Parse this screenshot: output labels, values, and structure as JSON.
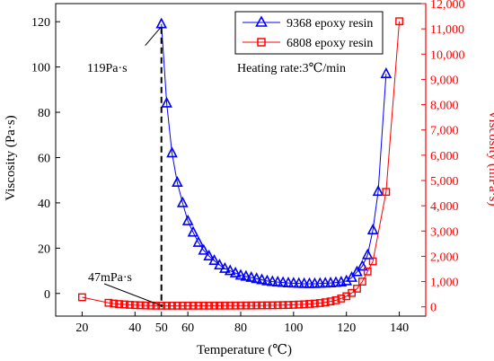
{
  "chart_data": {
    "type": "line",
    "xlabel": "Temperature (℃)",
    "ylabel_left": "Viscosity (Pa·s)",
    "ylabel_right": "Viscosity (mPa·s)",
    "xlim": [
      10,
      150
    ],
    "ylim_left": [
      -10,
      128
    ],
    "ylim_right": [
      -366,
      12000
    ],
    "x_ticks": [
      20,
      40,
      50,
      60,
      80,
      100,
      120,
      140
    ],
    "x_ticklabels": [
      "20",
      "40",
      "50",
      "60",
      "80",
      "100",
      "120",
      "140"
    ],
    "y_left_ticks": [
      0,
      20,
      40,
      60,
      80,
      100,
      120
    ],
    "y_left_ticklabels": [
      "0",
      "20",
      "40",
      "60",
      "80",
      "100",
      "120"
    ],
    "y_right_ticks": [
      0,
      1000,
      2000,
      3000,
      4000,
      5000,
      6000,
      7000,
      8000,
      9000,
      10000,
      11000,
      12000
    ],
    "y_right_ticklabels": [
      "0",
      "1,000",
      "2,000",
      "3,000",
      "4,000",
      "5,000",
      "6,000",
      "7,000",
      "8,000",
      "9,000",
      "10,000",
      "11,000",
      "12,000"
    ],
    "grid": false,
    "legend_position": "top-right",
    "annotations": {
      "peak_label": "119Pa·s",
      "low_label": "47mPa·s",
      "heating_rate": "Heating rate:3℃/min"
    },
    "series": [
      {
        "name": "9368 epoxy resin",
        "axis": "left",
        "color": "#0000ff",
        "marker": "triangle",
        "x": [
          50,
          52,
          54,
          56,
          58,
          60,
          62,
          64,
          66,
          68,
          70,
          72,
          74,
          76,
          78,
          80,
          82,
          84,
          86,
          88,
          90,
          92,
          94,
          96,
          98,
          100,
          102,
          104,
          106,
          108,
          110,
          112,
          114,
          116,
          118,
          120,
          122,
          124,
          126,
          128,
          130,
          132,
          135
        ],
        "y": [
          119,
          84,
          62,
          49,
          40,
          32,
          27,
          22.5,
          19,
          16.5,
          14.5,
          12.5,
          11,
          10,
          9,
          8,
          7.5,
          7,
          6.5,
          6,
          5.5,
          5.2,
          5,
          4.8,
          4.6,
          4.5,
          4.4,
          4.3,
          4.3,
          4.3,
          4.4,
          4.5,
          4.6,
          4.8,
          5,
          5.5,
          7,
          9.5,
          12,
          17,
          28,
          45,
          97
        ]
      },
      {
        "name": "6808 epoxy resin",
        "axis": "right",
        "color": "#ff0000",
        "marker": "square",
        "x": [
          20,
          30,
          32,
          34,
          36,
          38,
          40,
          42,
          44,
          46,
          48,
          50,
          52,
          54,
          56,
          58,
          60,
          62,
          64,
          66,
          68,
          70,
          72,
          74,
          76,
          78,
          80,
          82,
          84,
          86,
          88,
          90,
          92,
          94,
          96,
          98,
          100,
          102,
          104,
          106,
          108,
          110,
          112,
          114,
          116,
          118,
          120,
          122,
          124,
          126,
          128,
          130,
          135,
          140
        ],
        "y": [
          380,
          160,
          130,
          110,
          95,
          80,
          70,
          62,
          55,
          50,
          48,
          47,
          47,
          47,
          47,
          47,
          47,
          48,
          48,
          48,
          48,
          49,
          49,
          50,
          50,
          51,
          52,
          53,
          54,
          56,
          58,
          60,
          62,
          66,
          70,
          75,
          82,
          90,
          100,
          115,
          130,
          150,
          180,
          215,
          260,
          330,
          420,
          550,
          720,
          1000,
          1400,
          1800,
          4550,
          11300
        ]
      }
    ]
  }
}
